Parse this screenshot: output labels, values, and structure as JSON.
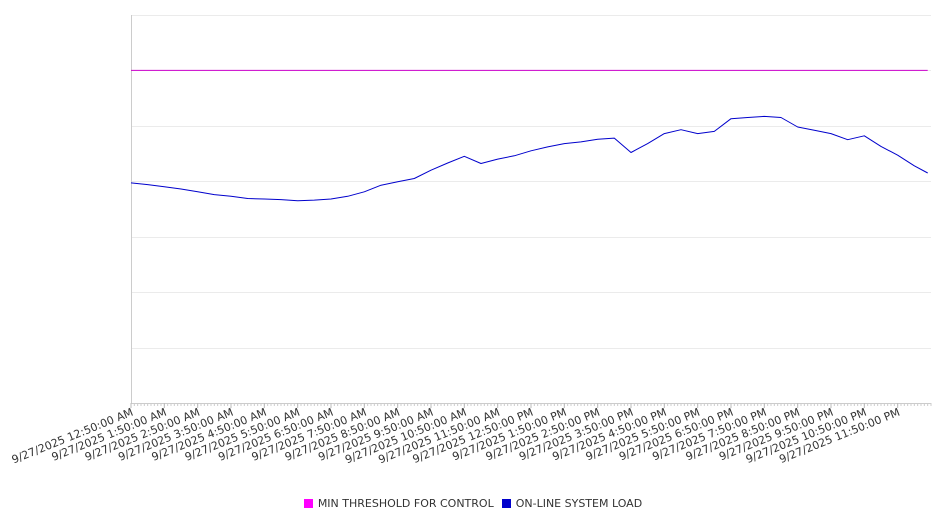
{
  "chart_data": {
    "type": "line",
    "title": "",
    "xlabel": "",
    "ylabel": "",
    "ylim": [
      0,
      7
    ],
    "grid": true,
    "legend_placement": "bottom-center",
    "x_tick_labels": [
      "9/27/2025 12:50:00 AM",
      "9/27/2025 1:50:00 AM",
      "9/27/2025 2:50:00 AM",
      "9/27/2025 3:50:00 AM",
      "9/27/2025 4:50:00 AM",
      "9/27/2025 5:50:00 AM",
      "9/27/2025 6:50:00 AM",
      "9/27/2025 7:50:00 AM",
      "9/27/2025 8:50:00 AM",
      "9/27/2025 9:50:00 AM",
      "9/27/2025 10:50:00 AM",
      "9/27/2025 11:50:00 AM",
      "9/27/2025 12:50:00 PM",
      "9/27/2025 1:50:00 PM",
      "9/27/2025 2:50:00 PM",
      "9/27/2025 3:50:00 PM",
      "9/27/2025 4:50:00 PM",
      "9/27/2025 5:50:00 PM",
      "9/27/2025 6:50:00 PM",
      "9/27/2025 7:50:00 PM",
      "9/27/2025 8:50:00 PM",
      "9/27/2025 9:50:00 PM",
      "9/27/2025 10:50:00 PM",
      "9/27/2025 11:50:00 PM"
    ],
    "x_hours": [
      0,
      0.5,
      1,
      1.5,
      2,
      2.5,
      3,
      3.5,
      4,
      4.5,
      5,
      5.5,
      6,
      6.5,
      7,
      7.5,
      8,
      8.5,
      9,
      9.5,
      10,
      10.5,
      11,
      11.5,
      12,
      12.5,
      13,
      13.5,
      14,
      14.5,
      15,
      15.5,
      16,
      16.5,
      17,
      17.5,
      18,
      18.5,
      19,
      19.5,
      20,
      20.5,
      21,
      21.5,
      22,
      22.5,
      23,
      23.5,
      23.9
    ],
    "series": [
      {
        "name": "MIN THRESHOLD FOR CONTROL",
        "color": "#cc00cc",
        "values": [
          6.0,
          6.0,
          6.0,
          6.0,
          6.0,
          6.0,
          6.0,
          6.0,
          6.0,
          6.0,
          6.0,
          6.0,
          6.0,
          6.0,
          6.0,
          6.0,
          6.0,
          6.0,
          6.0,
          6.0,
          6.0,
          6.0,
          6.0,
          6.0,
          6.0,
          6.0,
          6.0,
          6.0,
          6.0,
          6.0,
          6.0,
          6.0,
          6.0,
          6.0,
          6.0,
          6.0,
          6.0,
          6.0,
          6.0,
          6.0,
          6.0,
          6.0,
          6.0,
          6.0,
          6.0,
          6.0,
          6.0,
          6.0,
          6.0
        ]
      },
      {
        "name": "ON-LINE SYSTEM LOAD",
        "color": "#0000cc",
        "values": [
          3.97,
          3.94,
          3.9,
          3.86,
          3.81,
          3.76,
          3.73,
          3.69,
          3.68,
          3.67,
          3.65,
          3.66,
          3.68,
          3.73,
          3.81,
          3.93,
          3.99,
          4.05,
          4.2,
          4.33,
          4.45,
          4.32,
          4.4,
          4.46,
          4.55,
          4.62,
          4.68,
          4.71,
          4.76,
          4.78,
          4.52,
          4.68,
          4.86,
          4.93,
          4.86,
          4.9,
          5.13,
          5.15,
          5.17,
          5.15,
          4.98,
          4.92,
          4.86,
          4.75,
          4.82,
          4.63,
          4.47,
          4.28,
          4.15
        ]
      }
    ]
  }
}
